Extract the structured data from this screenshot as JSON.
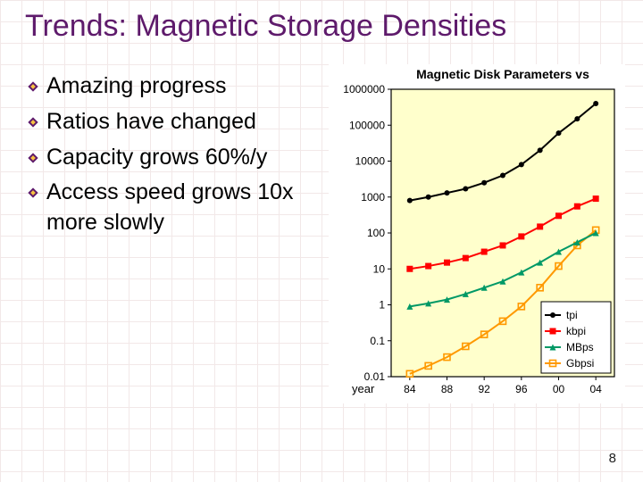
{
  "slide": {
    "title": "Trends: Magnetic Storage Densities",
    "page_number": "8",
    "title_color": "#5e1a6b",
    "bullet_marker_fill": "#5e1a6b",
    "bullet_marker_accent": "#f7c242",
    "text_color": "#000000",
    "body_fontsize": 25,
    "title_fontsize": 34,
    "grid_line_color": "#f2e8e8"
  },
  "bullets": [
    {
      "text": "Amazing progress"
    },
    {
      "text": "Ratios have changed"
    },
    {
      "text": "Capacity grows 60%/y"
    },
    {
      "text": "Access speed grows 10x more slowly"
    }
  ],
  "chart": {
    "type": "line",
    "title": "Magnetic Disk Parameters vs",
    "title_fontsize": 14,
    "title_weight": "bold",
    "background_color": "#ffffff",
    "plot_background_color": "#ffffcc",
    "axis_color": "#000000",
    "grid": false,
    "xlabel": "year",
    "label_fontsize": 13,
    "x": {
      "ticks": [
        84,
        88,
        92,
        96,
        100,
        104
      ],
      "tick_labels": [
        "84",
        "88",
        "92",
        "96",
        "00",
        "04"
      ],
      "lim": [
        82,
        106
      ]
    },
    "y": {
      "scale": "log",
      "lim": [
        0.01,
        1000000
      ],
      "ticks": [
        0.01,
        0.1,
        1,
        10,
        100,
        1000,
        10000,
        100000,
        1000000
      ],
      "tick_labels": [
        "0.01",
        "0.1",
        "1",
        "10",
        "100",
        "1000",
        "10000",
        "100000",
        "1000000"
      ]
    },
    "legend": {
      "position": "bottom-right-inside",
      "box": true,
      "fontsize": 12,
      "items": [
        {
          "key": "tpi",
          "label": "tpi"
        },
        {
          "key": "kbpi",
          "label": "kbpi"
        },
        {
          "key": "MBps",
          "label": "MBps"
        },
        {
          "key": "Gbpsi",
          "label": "Gbpsi"
        }
      ]
    },
    "series": {
      "tpi": {
        "color": "#000000",
        "line_width": 2,
        "marker": "circle-filled",
        "marker_size": 6,
        "x": [
          84,
          86,
          88,
          90,
          92,
          94,
          96,
          98,
          100,
          102,
          104
        ],
        "y": [
          800,
          1000,
          1300,
          1700,
          2500,
          4000,
          8000,
          20000,
          60000,
          150000,
          400000
        ]
      },
      "kbpi": {
        "color": "#ff0000",
        "line_width": 2,
        "marker": "square-filled",
        "marker_size": 7,
        "x": [
          84,
          86,
          88,
          90,
          92,
          94,
          96,
          98,
          100,
          102,
          104
        ],
        "y": [
          10,
          12,
          15,
          20,
          30,
          45,
          80,
          150,
          300,
          550,
          900
        ]
      },
      "MBps": {
        "color": "#009966",
        "line_width": 2,
        "marker": "triangle-filled",
        "marker_size": 7,
        "x": [
          84,
          86,
          88,
          90,
          92,
          94,
          96,
          98,
          100,
          102,
          104
        ],
        "y": [
          0.9,
          1.1,
          1.4,
          2,
          3,
          4.5,
          8,
          15,
          30,
          55,
          100
        ]
      },
      "Gbpsi": {
        "color": "#ff9900",
        "line_width": 2,
        "marker": "square-open",
        "marker_size": 7,
        "x": [
          84,
          86,
          88,
          90,
          92,
          94,
          96,
          98,
          100,
          102,
          104
        ],
        "y": [
          0.012,
          0.02,
          0.035,
          0.07,
          0.15,
          0.35,
          0.9,
          3,
          12,
          45,
          120
        ]
      }
    }
  }
}
